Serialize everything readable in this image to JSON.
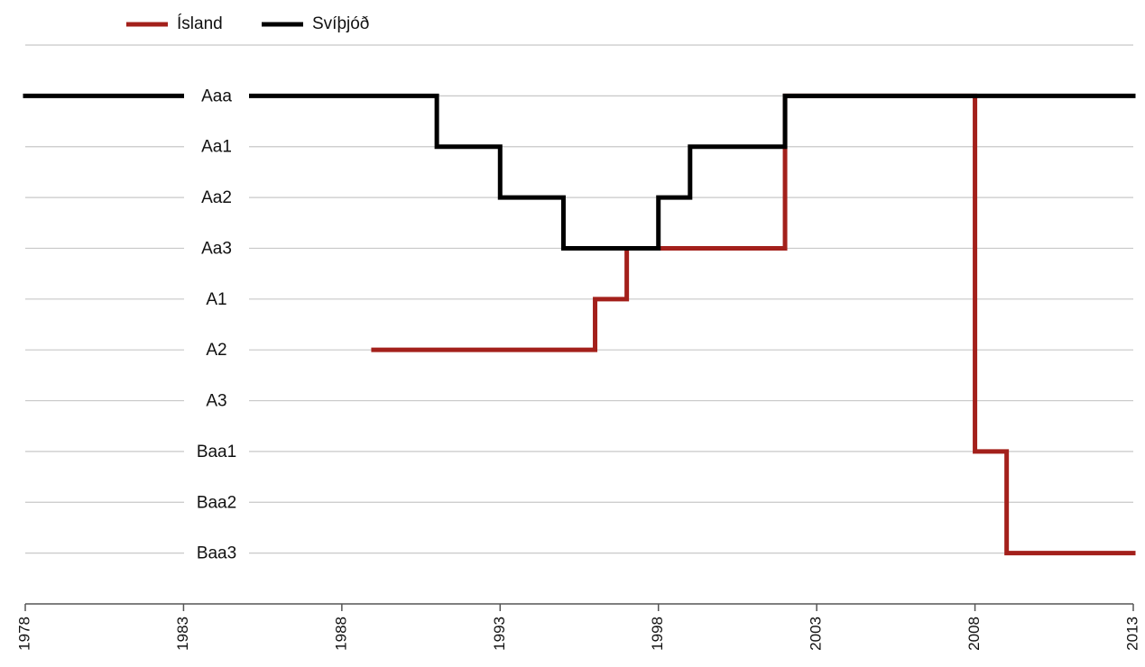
{
  "chart_data": {
    "type": "line",
    "step": true,
    "xlim": [
      1978,
      2013
    ],
    "xticks": [
      1978,
      1983,
      1988,
      1993,
      1998,
      2003,
      2008,
      2013
    ],
    "ylim": [
      0,
      11
    ],
    "yticks": [
      {
        "value": 10,
        "label": "Aaa"
      },
      {
        "value": 9,
        "label": "Aa1"
      },
      {
        "value": 8,
        "label": "Aa2"
      },
      {
        "value": 7,
        "label": "Aa3"
      },
      {
        "value": 6,
        "label": "A1"
      },
      {
        "value": 5,
        "label": "A2"
      },
      {
        "value": 4,
        "label": "A3"
      },
      {
        "value": 3,
        "label": "Baa1"
      },
      {
        "value": 2,
        "label": "Baa2"
      },
      {
        "value": 1,
        "label": "Baa3"
      }
    ],
    "grid": true,
    "legend": "top-left",
    "series": [
      {
        "name": "Ísland",
        "color": "#a3201b",
        "x": [
          1989,
          1996,
          1997,
          2002,
          2008,
          2009,
          2013
        ],
        "values": [
          5,
          6,
          7,
          10,
          3,
          1,
          1
        ]
      },
      {
        "name": "Svíþjóð",
        "color": "#000000",
        "x": [
          1978,
          1991,
          1993,
          1995,
          1998,
          1999,
          2002,
          2013
        ],
        "values": [
          10,
          9,
          8,
          7,
          8,
          9,
          10,
          10
        ]
      }
    ]
  }
}
